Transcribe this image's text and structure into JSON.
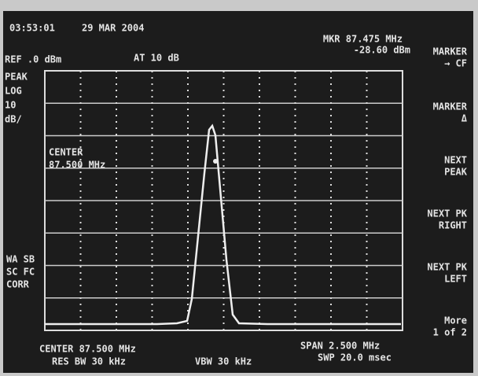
{
  "header": {
    "time": "03:53:01",
    "date": "29 MAR 2004",
    "marker_freq": "MKR 87.475 MHz",
    "marker_level": "-28.60 dBm",
    "ref": "REF .0 dBm",
    "atten": "AT 10 dB"
  },
  "left_labels": [
    "PEAK",
    "LOG",
    "10",
    "dB/"
  ],
  "center_annotation": [
    "CENTER",
    "87.500 MHz"
  ],
  "lower_left_labels": [
    "WA SB",
    "SC FC",
    "CORR"
  ],
  "softkeys": [
    [
      "MARKER",
      "→ CF"
    ],
    [
      "MARKER",
      "Δ"
    ],
    [
      "NEXT",
      "PEAK"
    ],
    [
      "NEXT PK",
      "RIGHT"
    ],
    [
      "NEXT PK",
      "LEFT"
    ],
    [
      "More",
      "1 of 2"
    ]
  ],
  "footer": {
    "center": "CENTER 87.500 MHz",
    "res_bw": "RES BW 30 kHz",
    "vbw": "VBW 30 kHz",
    "span": "SPAN 2.500 MHz",
    "sweep": "SWP 20.0 msec"
  }
}
